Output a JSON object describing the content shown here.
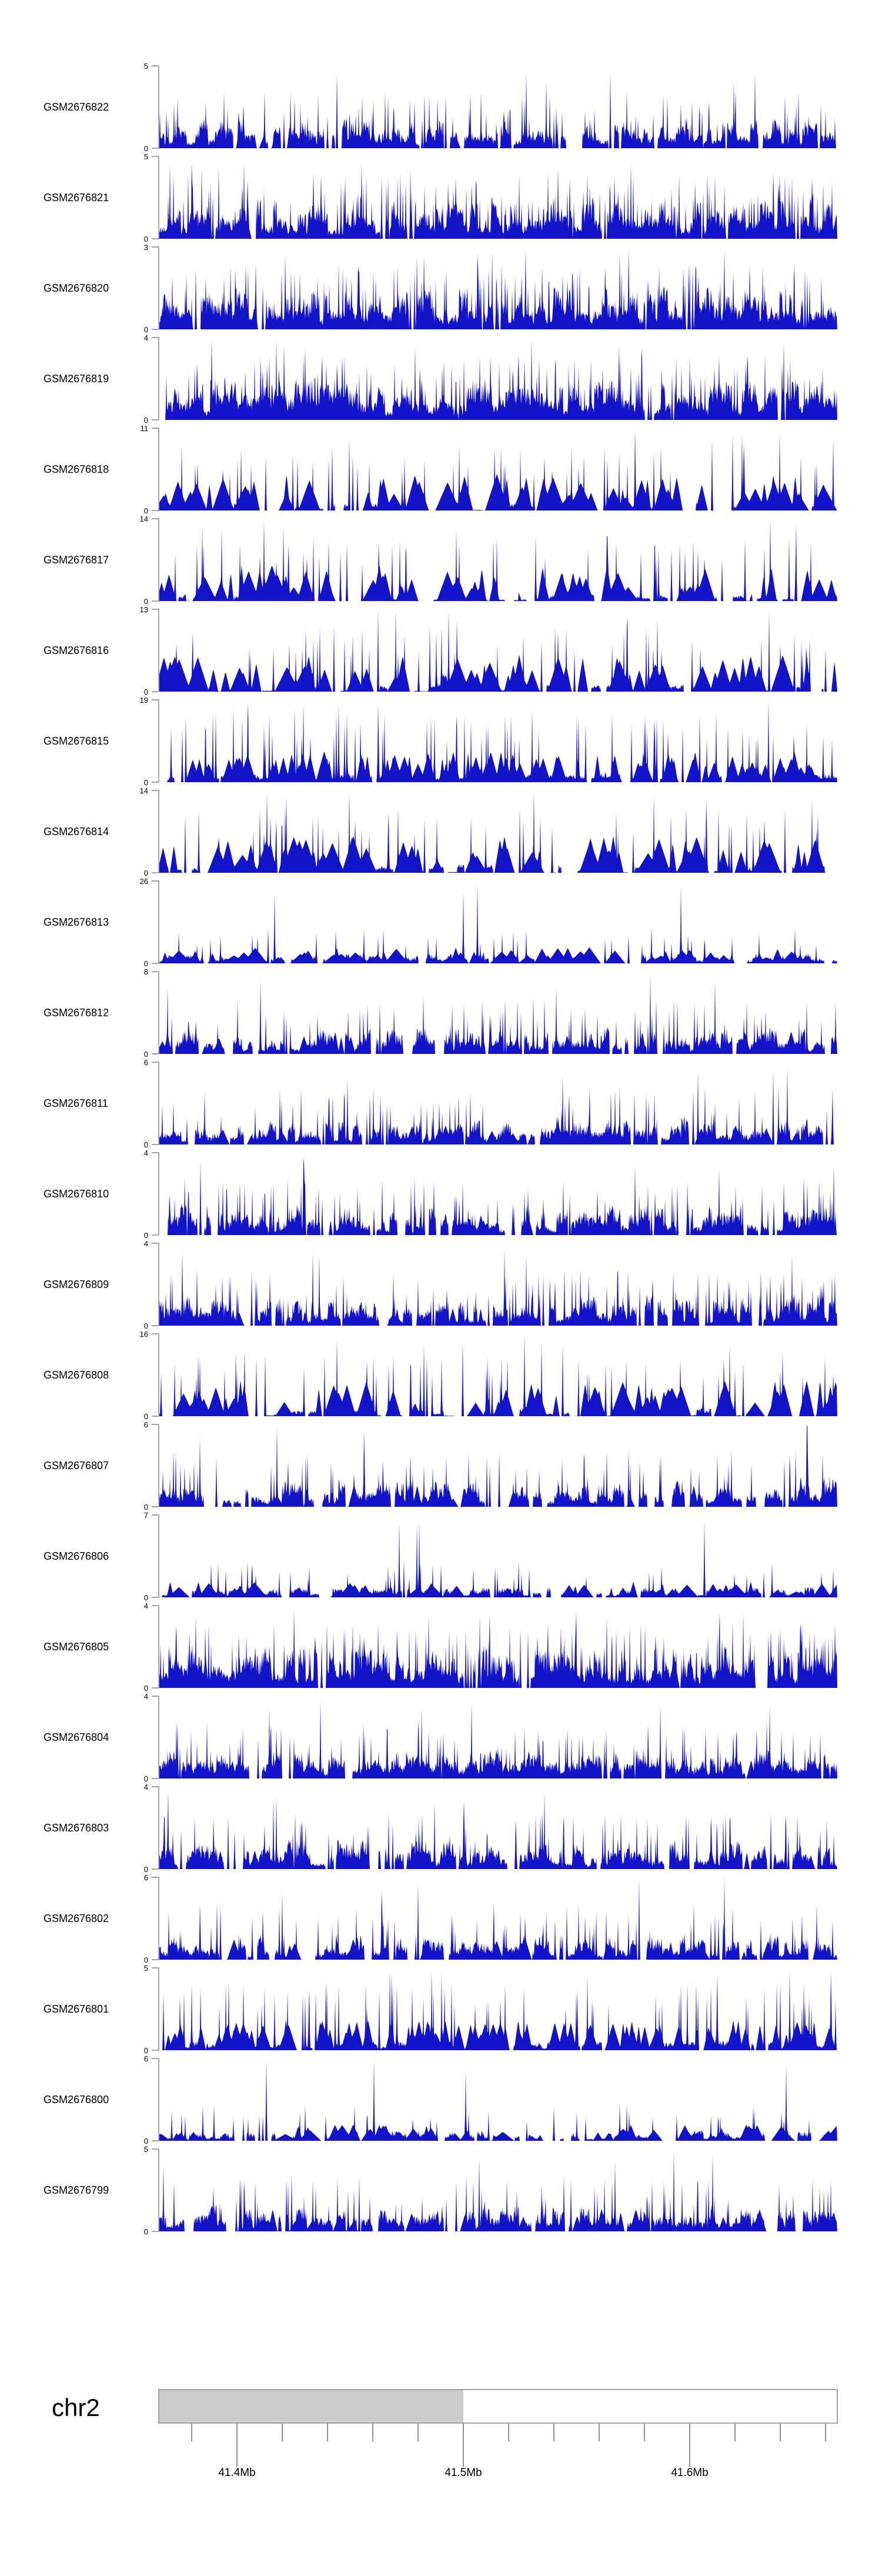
{
  "chart_data": {
    "type": "area",
    "title": "",
    "layout": "genome-browser coverage tracks, one row per sample, shared x-axis",
    "x_axis": {
      "chromosome": "chr2",
      "unit": "Mb",
      "region_mb": [
        41.366,
        41.666
      ],
      "major_tick_labels": [
        "41.4Mb",
        "41.5Mb",
        "41.6Mb"
      ],
      "major_tick_values_mb": [
        41.4,
        41.5,
        41.6
      ],
      "minor_tick_interval_mb": 0.02,
      "grid": false
    },
    "ideogram": {
      "chromosome_label": "chr2",
      "filled_segment_mb": [
        41.366,
        41.5
      ],
      "open_segment_mb": [
        41.5,
        41.666
      ]
    },
    "y_axis_note": "each track has ticks at 0 and its own maximum",
    "tracks": [
      {
        "label": "GSM2676822",
        "ymin": 0,
        "ymax": 5,
        "style": "dense",
        "seed": 201
      },
      {
        "label": "GSM2676821",
        "ymin": 0,
        "ymax": 5,
        "style": "very-dense",
        "seed": 407
      },
      {
        "label": "GSM2676820",
        "ymin": 0,
        "ymax": 3,
        "style": "very-dense",
        "seed": 613
      },
      {
        "label": "GSM2676819",
        "ymin": 0,
        "ymax": 4,
        "style": "very-dense",
        "seed": 819
      },
      {
        "label": "GSM2676818",
        "ymin": 0,
        "ymax": 11,
        "style": "peaks",
        "seed": 1025
      },
      {
        "label": "GSM2676817",
        "ymin": 0,
        "ymax": 14,
        "style": "peaks",
        "seed": 1231
      },
      {
        "label": "GSM2676816",
        "ymin": 0,
        "ymax": 13,
        "style": "peaks",
        "seed": 1437
      },
      {
        "label": "GSM2676815",
        "ymin": 0,
        "ymax": 19,
        "style": "peaks-dense",
        "seed": 1643
      },
      {
        "label": "GSM2676814",
        "ymin": 0,
        "ymax": 14,
        "style": "peaks",
        "seed": 1849
      },
      {
        "label": "GSM2676813",
        "ymin": 0,
        "ymax": 26,
        "style": "sparse-tall",
        "seed": 2055
      },
      {
        "label": "GSM2676812",
        "ymin": 0,
        "ymax": 8,
        "style": "medium",
        "seed": 2261
      },
      {
        "label": "GSM2676811",
        "ymin": 0,
        "ymax": 6,
        "style": "medium",
        "seed": 2467
      },
      {
        "label": "GSM2676810",
        "ymin": 0,
        "ymax": 4,
        "style": "dense",
        "seed": 2673
      },
      {
        "label": "GSM2676809",
        "ymin": 0,
        "ymax": 4,
        "style": "dense",
        "seed": 2879
      },
      {
        "label": "GSM2676808",
        "ymin": 0,
        "ymax": 16,
        "style": "peaks",
        "seed": 3085
      },
      {
        "label": "GSM2676807",
        "ymin": 0,
        "ymax": 6,
        "style": "medium",
        "seed": 3291
      },
      {
        "label": "GSM2676806",
        "ymin": 0,
        "ymax": 7,
        "style": "sparse-tall",
        "seed": 3497
      },
      {
        "label": "GSM2676805",
        "ymin": 0,
        "ymax": 4,
        "style": "very-dense",
        "seed": 3703
      },
      {
        "label": "GSM2676804",
        "ymin": 0,
        "ymax": 4,
        "style": "dense",
        "seed": 3909
      },
      {
        "label": "GSM2676803",
        "ymin": 0,
        "ymax": 4,
        "style": "dense",
        "seed": 4115
      },
      {
        "label": "GSM2676802",
        "ymin": 0,
        "ymax": 6,
        "style": "medium",
        "seed": 4321
      },
      {
        "label": "GSM2676801",
        "ymin": 0,
        "ymax": 5,
        "style": "peaks-dense",
        "seed": 4527
      },
      {
        "label": "GSM2676800",
        "ymin": 0,
        "ymax": 6,
        "style": "sparse-tall",
        "seed": 4733
      },
      {
        "label": "GSM2676799",
        "ymin": 0,
        "ymax": 5,
        "style": "medium",
        "seed": 4939
      }
    ]
  },
  "colors": {
    "signal": "#1313c9",
    "axis": "#858585",
    "ideogram_fill": "#cdcdcd",
    "ideogram_border": "#9b9b9b",
    "ruler_tick": "#4a4a4a",
    "text": "#000000",
    "background": "#ffffff"
  }
}
